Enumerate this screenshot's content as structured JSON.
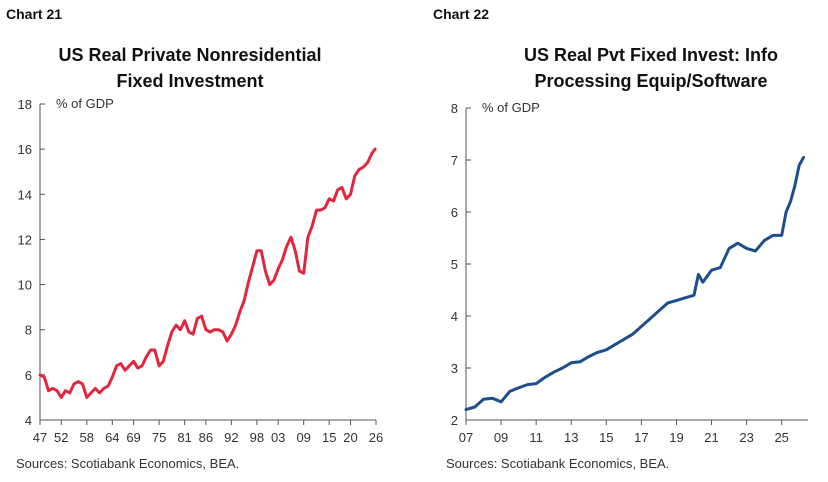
{
  "chart_data": [
    {
      "type": "line",
      "chart_number": "Chart 21",
      "title_line1": "US Real Private Nonresidential",
      "title_line2": "Fixed Investment",
      "ylabel": "% of GDP",
      "ylim": [
        4,
        18
      ],
      "yticks": [
        "4",
        "6",
        "8",
        "10",
        "12",
        "14",
        "16",
        "18"
      ],
      "xlim": [
        1947,
        2026
      ],
      "xtick_labels": [
        "47",
        "52",
        "58",
        "64",
        "69",
        "75",
        "81",
        "86",
        "92",
        "98",
        "03",
        "09",
        "15",
        "20",
        "26"
      ],
      "xtick_years": [
        1947,
        1952,
        1958,
        1964,
        1969,
        1975,
        1981,
        1986,
        1992,
        1998,
        2003,
        2009,
        2015,
        2020,
        2026
      ],
      "grid": false,
      "line_color": "#e3263f",
      "series": [
        {
          "x": [
            1947,
            1948,
            1949,
            1950,
            1951,
            1952,
            1953,
            1954,
            1955,
            1956,
            1957,
            1958,
            1959,
            1960,
            1961,
            1962,
            1963,
            1964,
            1965,
            1966,
            1967,
            1968,
            1969,
            1970,
            1971,
            1972,
            1973,
            1974,
            1975,
            1976,
            1977,
            1978,
            1979,
            1980,
            1981,
            1982,
            1983,
            1984,
            1985,
            1986,
            1987,
            1988,
            1989,
            1990,
            1991,
            1992,
            1993,
            1994,
            1995,
            1996,
            1997,
            1998,
            1999,
            2000,
            2001,
            2002,
            2003,
            2004,
            2005,
            2006,
            2007,
            2008,
            2009,
            2010,
            2011,
            2012,
            2013,
            2014,
            2015,
            2016,
            2017,
            2018,
            2019,
            2020,
            2021,
            2022,
            2023,
            2024,
            2025,
            2025.8
          ],
          "values": [
            6.0,
            5.9,
            5.3,
            5.4,
            5.3,
            5.0,
            5.3,
            5.2,
            5.6,
            5.7,
            5.6,
            5.0,
            5.2,
            5.4,
            5.2,
            5.4,
            5.5,
            5.9,
            6.4,
            6.5,
            6.2,
            6.4,
            6.6,
            6.3,
            6.4,
            6.8,
            7.1,
            7.1,
            6.4,
            6.6,
            7.3,
            7.9,
            8.2,
            8.0,
            8.4,
            7.9,
            7.8,
            8.5,
            8.6,
            8.0,
            7.9,
            8.0,
            8.0,
            7.9,
            7.5,
            7.8,
            8.2,
            8.8,
            9.3,
            10.1,
            10.8,
            11.5,
            11.5,
            10.6,
            10.0,
            10.2,
            10.7,
            11.1,
            11.7,
            12.1,
            11.5,
            10.6,
            10.5,
            12.1,
            12.6,
            13.3,
            13.3,
            13.4,
            13.8,
            13.7,
            14.2,
            14.3,
            13.8,
            14.0,
            14.8,
            15.1,
            15.2,
            15.4,
            15.8,
            16.0
          ]
        }
      ],
      "source": "Sources: Scotiabank Economics, BEA."
    },
    {
      "type": "line",
      "chart_number": "Chart 22",
      "title_line1": "US Real Pvt Fixed Invest: Info",
      "title_line2": "Processing Equip/Software",
      "ylabel": "% of GDP",
      "ylim": [
        2,
        8
      ],
      "yticks": [
        "2",
        "3",
        "4",
        "5",
        "6",
        "7",
        "8"
      ],
      "xlim": [
        2007,
        2026.5
      ],
      "xtick_labels": [
        "07",
        "09",
        "11",
        "13",
        "15",
        "17",
        "19",
        "21",
        "23",
        "25"
      ],
      "xtick_years": [
        2007,
        2009,
        2011,
        2013,
        2015,
        2017,
        2019,
        2021,
        2023,
        2025
      ],
      "grid": false,
      "line_color": "#1f4e8c",
      "series": [
        {
          "x": [
            2007,
            2007.5,
            2008,
            2008.5,
            2009,
            2009.5,
            2010,
            2010.5,
            2011,
            2011.5,
            2012,
            2012.5,
            2013,
            2013.5,
            2014,
            2014.5,
            2015,
            2015.5,
            2016,
            2016.5,
            2017,
            2017.5,
            2018,
            2018.5,
            2019,
            2019.5,
            2020,
            2020.25,
            2020.5,
            2021,
            2021.5,
            2022,
            2022.5,
            2023,
            2023.5,
            2024,
            2024.5,
            2025,
            2025.25,
            2025.5,
            2025.75,
            2026,
            2026.25
          ],
          "values": [
            2.2,
            2.25,
            2.4,
            2.42,
            2.35,
            2.55,
            2.62,
            2.68,
            2.7,
            2.82,
            2.92,
            3.0,
            3.1,
            3.12,
            3.22,
            3.3,
            3.35,
            3.45,
            3.55,
            3.65,
            3.8,
            3.95,
            4.1,
            4.25,
            4.3,
            4.35,
            4.4,
            4.8,
            4.65,
            4.88,
            4.93,
            5.3,
            5.4,
            5.3,
            5.25,
            5.45,
            5.55,
            5.55,
            6.0,
            6.2,
            6.5,
            6.9,
            7.05
          ]
        }
      ],
      "source": "Sources: Scotiabank Economics, BEA."
    }
  ]
}
